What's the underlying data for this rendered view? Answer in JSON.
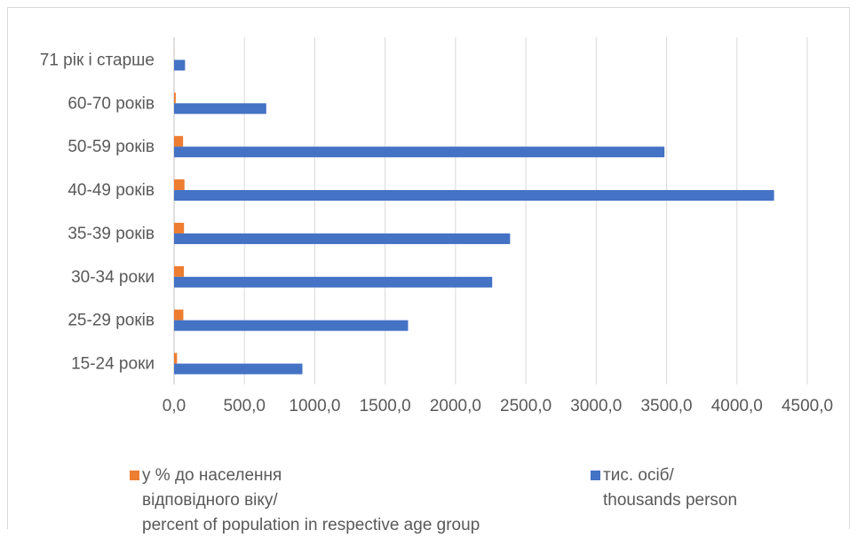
{
  "chart_data": {
    "type": "bar",
    "orientation": "horizontal",
    "categories": [
      "15-24 роки",
      "25-29 років",
      "30-34 роки",
      "35-39 років",
      "40-49 років",
      "50-59 років",
      "60-70 років",
      "71 рік і старше"
    ],
    "series": [
      {
        "name_lines": [
          "у % до  населення",
          "відповідного віку/",
          "percent of population in respective age group"
        ],
        "color": "#ed7d31",
        "values": [
          21.0,
          66.0,
          70.0,
          70.5,
          74.0,
          64.0,
          12.0,
          0.5
        ]
      },
      {
        "name_lines": [
          "тис. осіб/",
          "thousands person"
        ],
        "color": "#4472c4",
        "values": [
          912.0,
          1663.0,
          2261.0,
          2388.0,
          4264.0,
          3485.0,
          655.0,
          78.0
        ]
      }
    ],
    "x_ticks": [
      "0,0",
      "500,0",
      "1000,0",
      "1500,0",
      "2000,0",
      "2500,0",
      "3000,0",
      "3500,0",
      "4000,0",
      "4500,0"
    ],
    "xlim": [
      0,
      4500
    ],
    "grid": true,
    "gridline_color": "#d9d9d9",
    "legend_position": "bottom"
  }
}
